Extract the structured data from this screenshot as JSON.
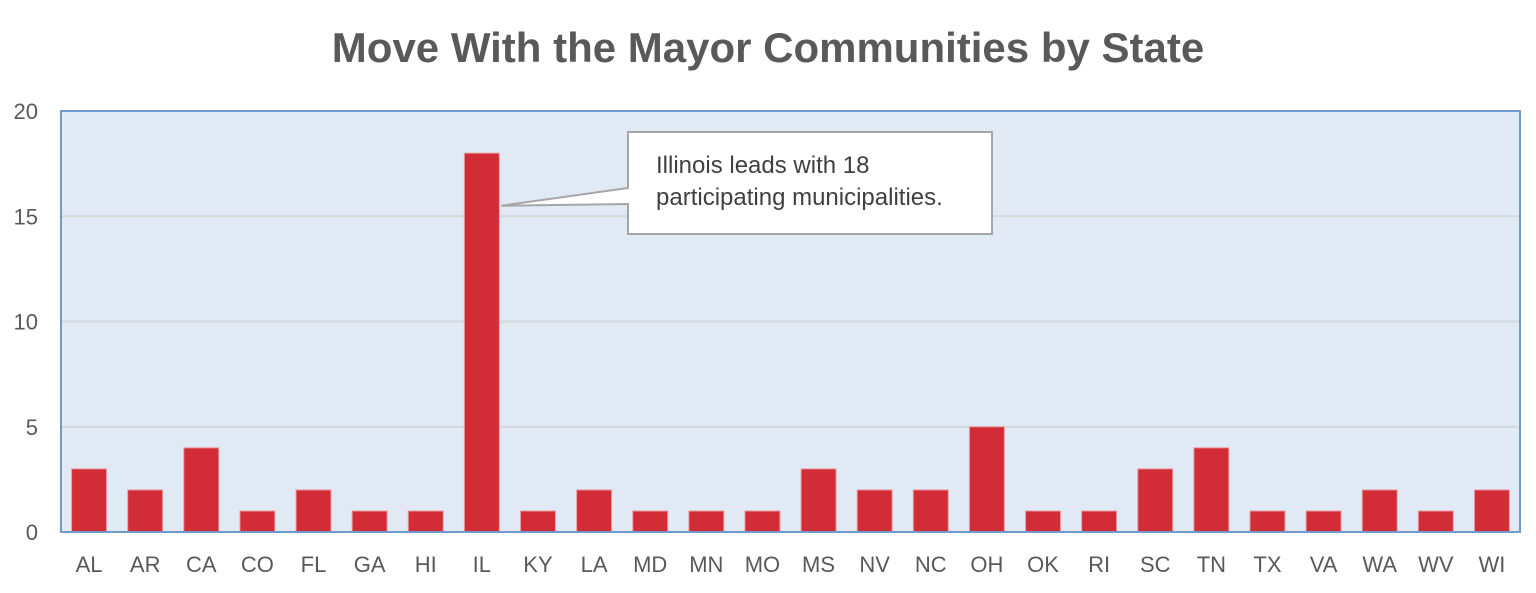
{
  "chart_data": {
    "type": "bar",
    "title": "Move With the Mayor Communities by State",
    "xlabel": "",
    "ylabel": "",
    "categories": [
      "AL",
      "AR",
      "CA",
      "CO",
      "FL",
      "GA",
      "HI",
      "IL",
      "KY",
      "LA",
      "MD",
      "MN",
      "MO",
      "MS",
      "NV",
      "NC",
      "OH",
      "OK",
      "RI",
      "SC",
      "TN",
      "TX",
      "VA",
      "WA",
      "WV",
      "WI"
    ],
    "values": [
      3,
      2,
      4,
      1,
      2,
      1,
      1,
      18,
      1,
      2,
      1,
      1,
      1,
      3,
      2,
      2,
      5,
      1,
      1,
      3,
      4,
      1,
      1,
      2,
      1,
      2
    ],
    "ylim": [
      0,
      20
    ],
    "yticks": [
      0,
      5,
      10,
      15,
      20
    ],
    "grid": true,
    "legend": "none",
    "colors": {
      "bar": "#D22D37",
      "plot_background": "#E1EAF4",
      "plot_border": "#6F9ACB",
      "grid": "#D4D7DB"
    },
    "annotation": {
      "target": "IL",
      "lines": [
        "Illinois leads with 18",
        "participating municipalities."
      ]
    }
  }
}
